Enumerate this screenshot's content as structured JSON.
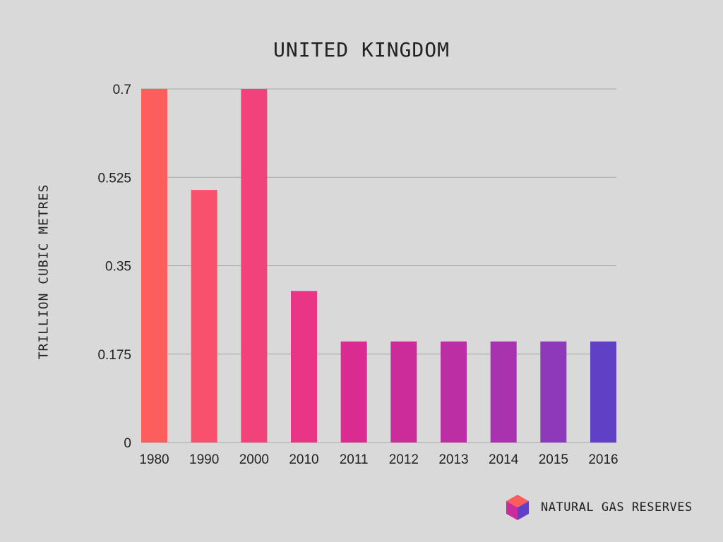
{
  "chart_data": {
    "type": "bar",
    "title": "UNITED KINGDOM",
    "ylabel": "TRILLION CUBIC METRES",
    "xlabel": "",
    "categories": [
      "1980",
      "1990",
      "2000",
      "2010",
      "2011",
      "2012",
      "2013",
      "2014",
      "2015",
      "2016"
    ],
    "values": [
      0.7,
      0.5,
      0.7,
      0.3,
      0.2,
      0.2,
      0.2,
      0.2,
      0.2,
      0.2
    ],
    "ylim": [
      0,
      0.7
    ],
    "yticks": [
      "0",
      "0.175",
      "0.35",
      "0.525",
      "0.7"
    ],
    "grid": true,
    "bar_colors": [
      "#fe5d5d",
      "#f9506e",
      "#f2427b",
      "#ea3586",
      "#da2c90",
      "#cc2b9a",
      "#bc2ea4",
      "#a932ae",
      "#8e39b9",
      "#6040c4"
    ]
  },
  "brand": {
    "label": "NATURAL GAS RESERVES",
    "icon": "cube-icon",
    "colors": {
      "top": "#fe5d5d",
      "left": "#cc2b9a",
      "right": "#6040c4"
    }
  }
}
